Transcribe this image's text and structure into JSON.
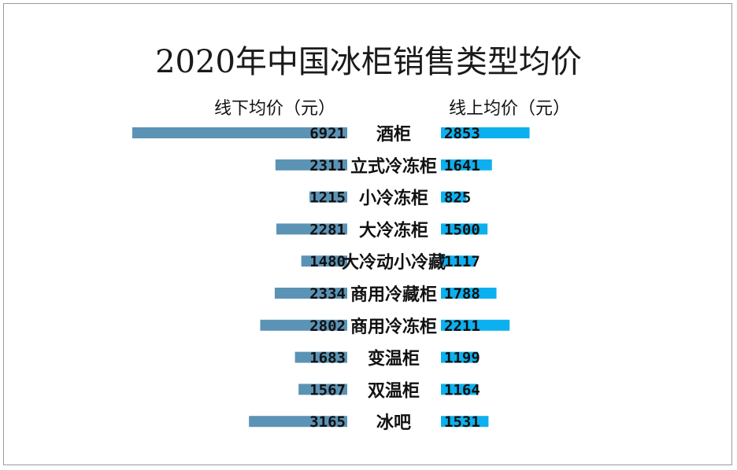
{
  "chart_data": {
    "type": "bar",
    "orientation": "horizontal-butterfly",
    "title": "2020年中国冰柜销售类型均价",
    "categories": [
      "酒柜",
      "立式冷冻柜",
      "小冷冻柜",
      "大冷冻柜",
      "大冷动小冷藏",
      "商用冷藏柜",
      "商用冷冻柜",
      "变温柜",
      "双温柜",
      "冰吧"
    ],
    "series": [
      {
        "name": "线下均价（元）",
        "values": [
          6921,
          2311,
          1215,
          2281,
          1480,
          2334,
          2802,
          1683,
          1567,
          3165
        ],
        "color": "#5b93b5",
        "side": "left"
      },
      {
        "name": "线上均价（元）",
        "values": [
          2853,
          1641,
          825,
          1500,
          1117,
          1788,
          2211,
          1199,
          1164,
          1531
        ],
        "color": "#0db0ee",
        "side": "right"
      }
    ],
    "grid": false,
    "legend": "top"
  }
}
